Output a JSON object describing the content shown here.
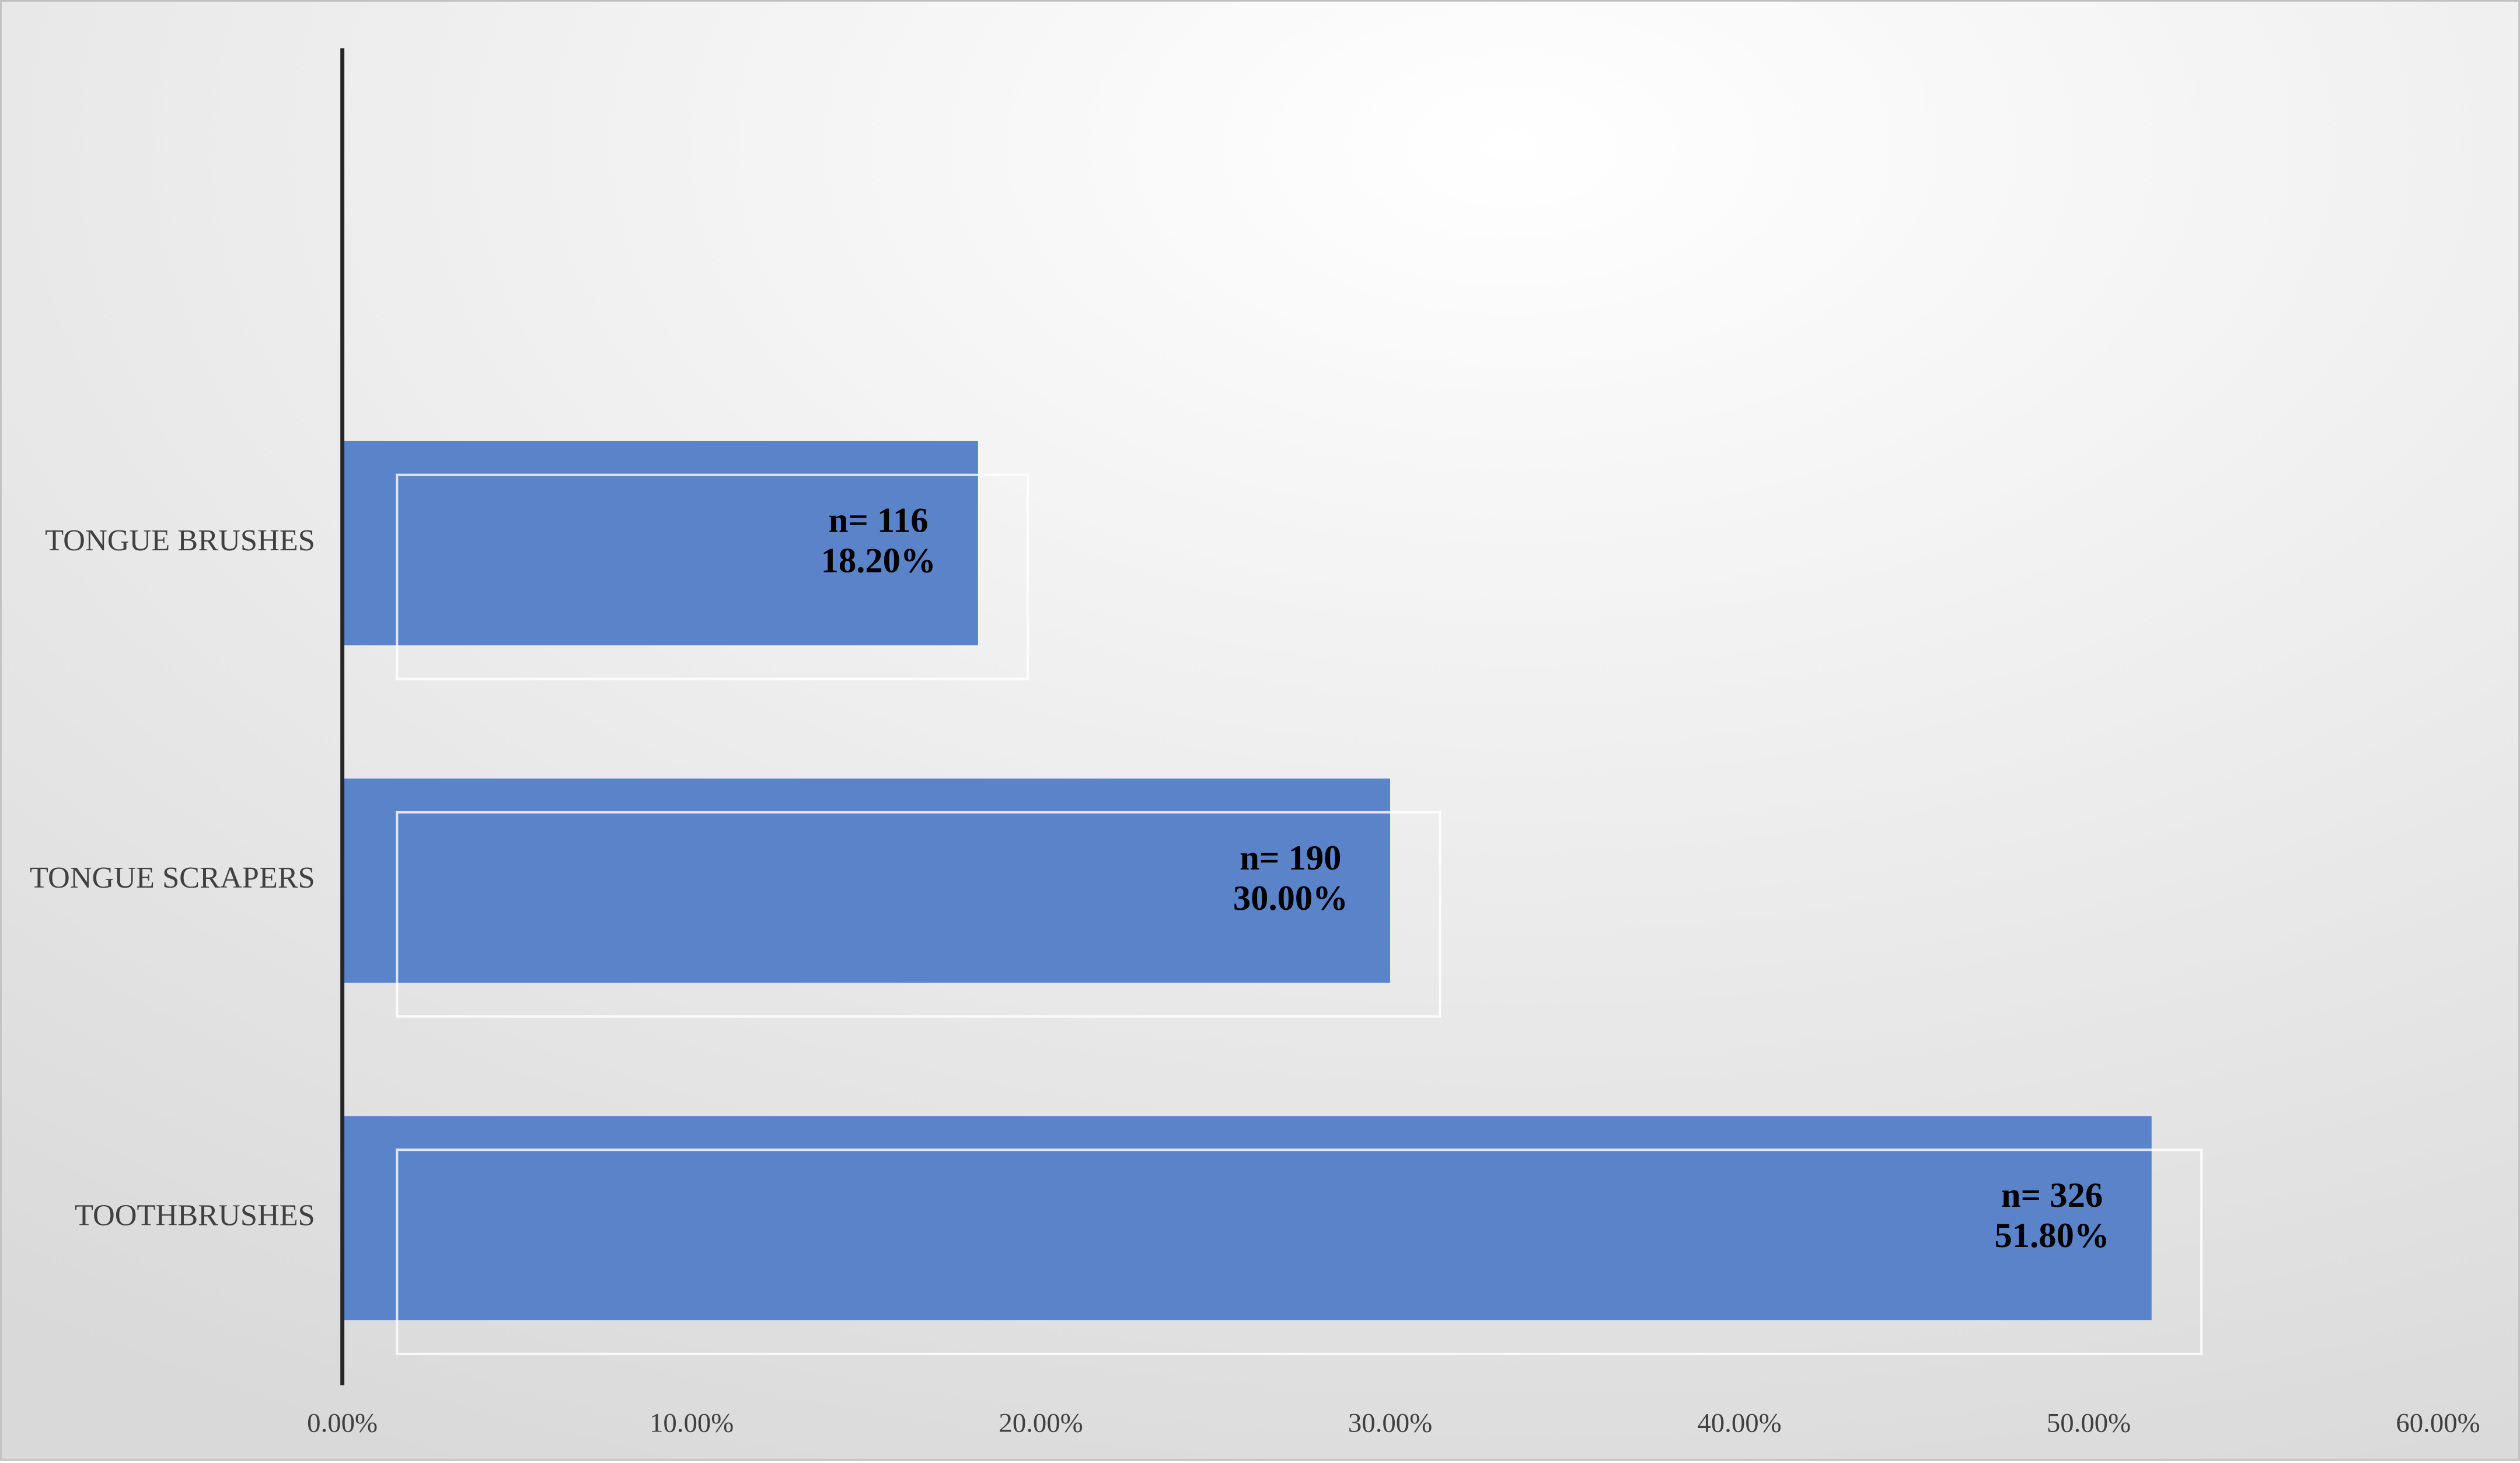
{
  "chart_data": {
    "type": "barh",
    "categories": [
      "TONGUE BRUSHES",
      "TONGUE SCRAPERS",
      "TOOTHBRUSHES"
    ],
    "values": [
      18.2,
      30.0,
      51.8
    ],
    "value_labels": [
      "18.20%",
      "30.00%",
      "51.80%"
    ],
    "count_labels": [
      "n= 116",
      "n= 190",
      "n= 326"
    ],
    "color": "#5b83c9",
    "xlim": [
      0,
      60
    ],
    "xticks": [
      {
        "value": 0,
        "label": "0.00%"
      },
      {
        "value": 10,
        "label": "10.00%"
      },
      {
        "value": 20,
        "label": "20.00%"
      },
      {
        "value": 30,
        "label": "30.00%"
      },
      {
        "value": 40,
        "label": "40.00%"
      },
      {
        "value": 50,
        "label": "50.00%"
      },
      {
        "value": 60,
        "label": "60.00%"
      }
    ],
    "grid": false
  }
}
